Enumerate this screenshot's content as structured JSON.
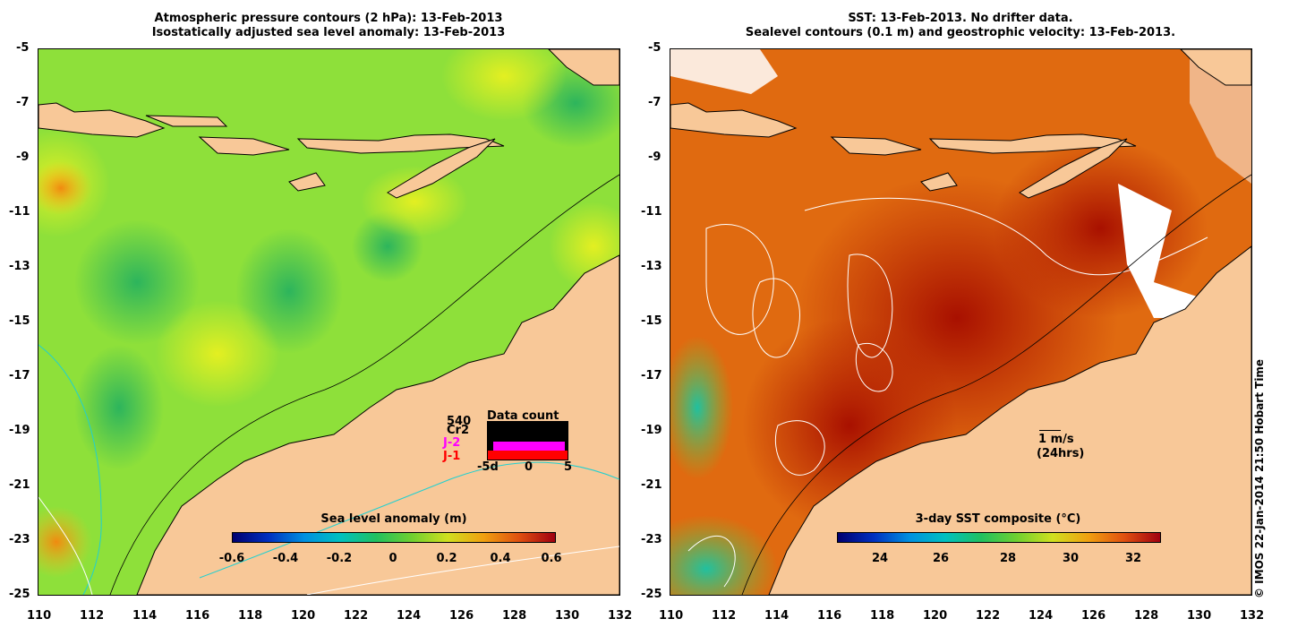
{
  "left_panel": {
    "title_line1": "Atmospheric pressure contours (2 hPa): 13-Feb-2013",
    "title_line2": "Isostatically adjusted sea level anomaly: 13-Feb-2013",
    "colorbar": {
      "title": "Sea level anomaly (m)",
      "ticks": [
        "-0.6",
        "-0.4",
        "-0.2",
        "0",
        "0.2",
        "0.4",
        "0.6"
      ]
    },
    "data_count": {
      "title": "Data count",
      "count": "540",
      "satellites": [
        "Cr2",
        "J-2",
        "J-1"
      ],
      "satellite_colors": [
        "#000000",
        "#ff00ff",
        "#ff0000"
      ],
      "axis_labels": [
        "-5d",
        "0",
        "5"
      ]
    }
  },
  "right_panel": {
    "title_line1": "SST: 13-Feb-2013. No drifter data.",
    "title_line2": "Sealevel contours (0.1 m) and geostrophic velocity: 13-Feb-2013.",
    "colorbar": {
      "title": "3-day SST composite (°C)",
      "ticks": [
        "24",
        "26",
        "28",
        "30",
        "32"
      ]
    },
    "velocity_scale": {
      "label1": "1 m/s",
      "label2": "(24hrs)"
    }
  },
  "axes": {
    "y_ticks": [
      "-5",
      "-7",
      "-9",
      "-11",
      "-13",
      "-15",
      "-17",
      "-19",
      "-21",
      "-23",
      "-25"
    ],
    "x_ticks": [
      "110",
      "112",
      "114",
      "116",
      "118",
      "120",
      "122",
      "124",
      "126",
      "128",
      "130",
      "132"
    ]
  },
  "copyright": "© IMOS 22-Jan-2014 21:50 Hobart Time",
  "colors": {
    "land": "#f8c898",
    "ocean_sla": "#8ee03a",
    "ocean_sst": "#e05a10"
  }
}
